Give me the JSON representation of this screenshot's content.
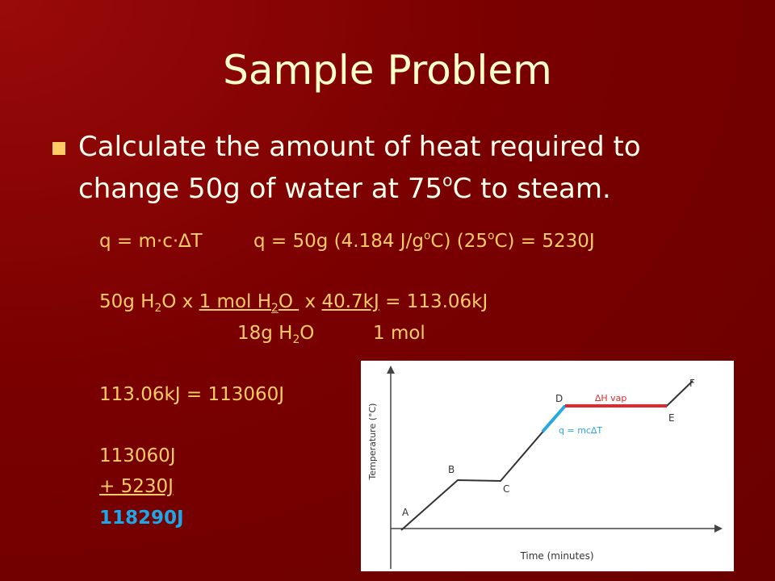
{
  "title": "Sample Problem",
  "bullet": {
    "text_1": "Calculate the amount of heat required to",
    "text_2": "change 50g of water at 75",
    "superscript": "o",
    "text_3": "C to steam."
  },
  "work": {
    "line_1": [
      "q = m·c·∆T",
      "q = 50g (4.184 J/g",
      "o",
      "C) (25",
      "o",
      "C) = 5230J"
    ],
    "line_2": [
      "50g H",
      "2",
      "O x ",
      "1 mol H",
      "2",
      "O ",
      " x ",
      "40.7kJ",
      " = 113.06kJ"
    ],
    "line_3": [
      "18g H",
      "2",
      "O",
      "1 mol"
    ],
    "line_4": "113.06kJ = 113060J",
    "line_5": "113060J",
    "line_6": "+ 5230J",
    "answer": "118290J"
  },
  "graph": {
    "y_axis": "Temperature (°C)",
    "x_axis": "Time (minutes)",
    "points": [
      "A",
      "B",
      "C",
      "D",
      "E",
      "F"
    ],
    "annotation_vap": "∆H vap",
    "annotation_heat": "q = mc∆T"
  }
}
